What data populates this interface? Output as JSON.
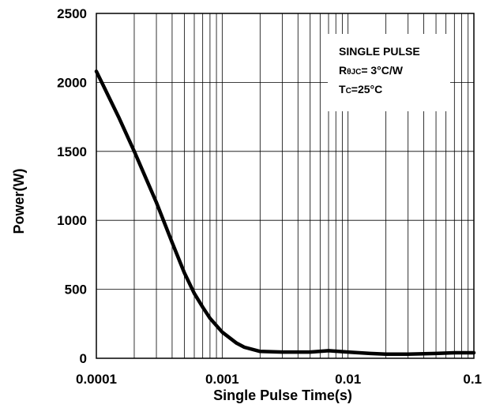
{
  "chart_data": {
    "type": "line",
    "title": "",
    "xlabel": "Single Pulse Time(s)",
    "ylabel": "Power(W)",
    "xscale": "log",
    "xlim": [
      0.0001,
      0.1
    ],
    "ylim": [
      0,
      2500
    ],
    "grid": true,
    "x_ticks": [
      "0.0001",
      "0.001",
      "0.01",
      "0.1"
    ],
    "y_ticks": [
      "0",
      "500",
      "1000",
      "1500",
      "2000",
      "2500"
    ],
    "annotation": {
      "line1": "SINGLE PULSE",
      "line2_main": "R",
      "line2_sub": "θJC",
      "line2_rest": "= 3°C/W",
      "line3_main": "T",
      "line3_sub": "C",
      "line3_rest": "=25°C",
      "placement": "top-right"
    },
    "series": [
      {
        "color": "#000000",
        "x": [
          0.0001,
          0.00015,
          0.0002,
          0.0003,
          0.0004,
          0.0005,
          0.0006,
          0.0007,
          0.0008,
          0.001,
          0.0013,
          0.0015,
          0.002,
          0.003,
          0.005,
          0.007,
          0.01,
          0.015,
          0.02,
          0.03,
          0.05,
          0.07,
          0.1
        ],
        "y": [
          2080,
          1750,
          1500,
          1130,
          840,
          620,
          470,
          370,
          290,
          190,
          110,
          80,
          50,
          45,
          45,
          55,
          45,
          35,
          30,
          30,
          35,
          40,
          40
        ]
      }
    ]
  }
}
